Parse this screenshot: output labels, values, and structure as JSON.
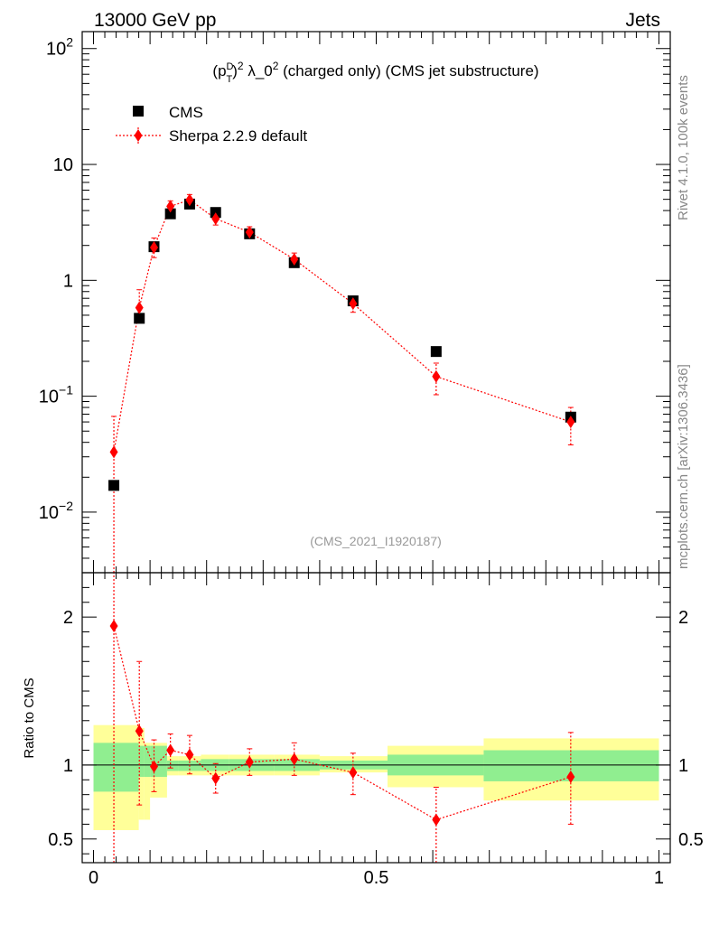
{
  "header": {
    "left_label": "13000 GeV pp",
    "right_label": "Jets"
  },
  "side_labels": {
    "rivet": "Rivet 4.1.0,  100k events",
    "source": "mcplots.cern.ch [arXiv:1306.3436]"
  },
  "colors": {
    "data_marker": "#000000",
    "mc_line": "#ff0000",
    "band_inner": "#90ee90",
    "band_outer": "#ffff99",
    "watermark": "#999999"
  },
  "chart_data": [
    {
      "type": "scatter",
      "panel": "main",
      "title_parts": {
        "p": "(p",
        "sup1": "D",
        "sub1": "T",
        "close": ")",
        "sup2": "2",
        "lambda": " λ_0",
        "sup3": "2",
        "rest": " (charged only) (CMS jet substructure)"
      },
      "watermark": "(CMS_2021_I1920187)",
      "y_scale": "log",
      "xlim": [
        -0.02,
        1.02
      ],
      "ylim": [
        0.003,
        140
      ],
      "yticks": [
        {
          "value": 0.01,
          "base": "10",
          "exp": "−2"
        },
        {
          "value": 0.1,
          "base": "10",
          "exp": "−1"
        },
        {
          "value": 1,
          "label": "1"
        },
        {
          "value": 10,
          "label": "10"
        },
        {
          "value": 100,
          "base": "10",
          "exp": "2"
        }
      ],
      "legend": [
        {
          "name": "CMS",
          "marker": "square"
        },
        {
          "name": "Sherpa 2.2.9 default",
          "marker": "diamond"
        }
      ],
      "series": [
        {
          "name": "CMS",
          "x": [
            0.036,
            0.081,
            0.107,
            0.136,
            0.17,
            0.216,
            0.276,
            0.355,
            0.459,
            0.606,
            0.844
          ],
          "y": [
            0.017,
            0.47,
            1.95,
            3.75,
            4.55,
            3.85,
            2.52,
            1.42,
            0.665,
            0.243,
            0.066
          ]
        },
        {
          "name": "Sherpa 2.2.9 default",
          "x": [
            0.036,
            0.081,
            0.107,
            0.136,
            0.17,
            0.216,
            0.276,
            0.355,
            0.459,
            0.606,
            0.844
          ],
          "y": [
            0.033,
            0.58,
            1.92,
            4.35,
            4.95,
            3.4,
            2.6,
            1.52,
            0.63,
            0.148,
            0.06
          ],
          "yerr_low": [
            0.033,
            0.15,
            0.35,
            0.5,
            0.55,
            0.4,
            0.3,
            0.2,
            0.1,
            0.045,
            0.022
          ],
          "yerr_high": [
            0.034,
            0.25,
            0.4,
            0.5,
            0.55,
            0.4,
            0.3,
            0.2,
            0.1,
            0.045,
            0.02
          ]
        }
      ]
    },
    {
      "type": "scatter",
      "panel": "ratio",
      "ylabel": "Ratio to CMS",
      "xlim": [
        -0.02,
        1.02
      ],
      "ylim": [
        0.34,
        2.3
      ],
      "xticks": [
        {
          "value": 0,
          "label": "0"
        },
        {
          "value": 0.5,
          "label": "0.5"
        },
        {
          "value": 1,
          "label": "1"
        }
      ],
      "yticks": [
        {
          "value": 0.5,
          "label": "0.5"
        },
        {
          "value": 1,
          "label": "1"
        },
        {
          "value": 2,
          "label": "2"
        }
      ],
      "bands": {
        "edges": [
          0,
          0.08,
          0.09,
          0.1,
          0.13,
          0.15,
          0.19,
          0.24,
          0.32,
          0.4,
          0.52,
          0.69,
          1.0
        ],
        "inner_low": [
          0.82,
          0.92,
          0.92,
          0.92,
          0.96,
          0.96,
          0.96,
          0.96,
          0.96,
          0.97,
          0.93,
          0.89
        ],
        "inner_high": [
          1.15,
          1.13,
          1.13,
          1.13,
          1.03,
          1.03,
          1.04,
          1.04,
          1.04,
          1.03,
          1.07,
          1.1
        ],
        "outer_low": [
          0.56,
          0.63,
          0.63,
          0.78,
          0.93,
          0.93,
          0.93,
          0.93,
          0.93,
          0.95,
          0.85,
          0.76
        ],
        "outer_high": [
          1.27,
          1.25,
          1.15,
          1.15,
          1.06,
          1.06,
          1.07,
          1.07,
          1.07,
          1.06,
          1.13,
          1.18
        ]
      },
      "series": [
        {
          "name": "Sherpa 2.2.9 default",
          "x": [
            0.036,
            0.081,
            0.107,
            0.136,
            0.17,
            0.216,
            0.276,
            0.355,
            0.459,
            0.606,
            0.844
          ],
          "y": [
            1.94,
            1.23,
            0.99,
            1.1,
            1.07,
            0.91,
            1.02,
            1.04,
            0.95,
            0.63,
            0.92
          ],
          "yerr_low": [
            1.7,
            0.5,
            0.17,
            0.12,
            0.13,
            0.1,
            0.09,
            0.11,
            0.15,
            0.3,
            0.32
          ],
          "yerr_high": [
            0.6,
            0.47,
            0.18,
            0.11,
            0.13,
            0.1,
            0.09,
            0.11,
            0.13,
            0.22,
            0.3
          ]
        }
      ]
    }
  ]
}
